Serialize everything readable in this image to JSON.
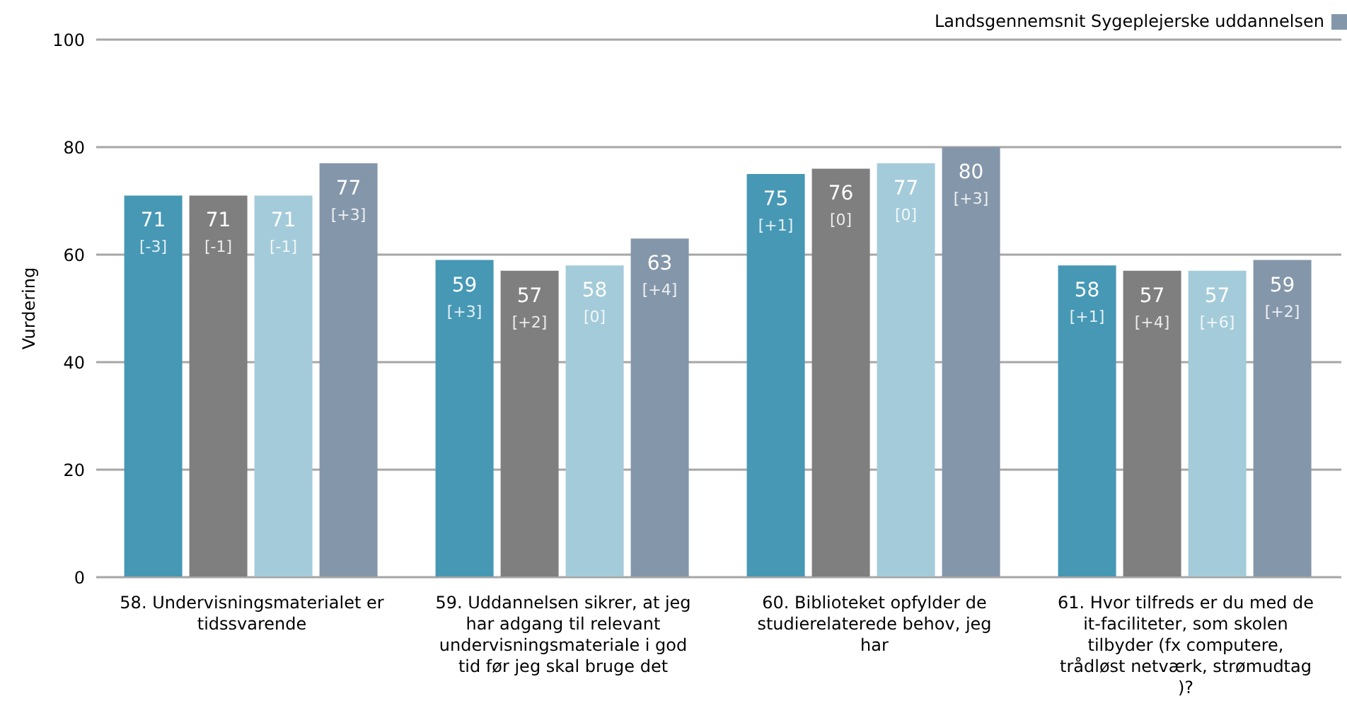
{
  "chart_data": {
    "type": "bar",
    "ylabel": "Vurdering",
    "categories": [
      "58. Undervisningsmaterialet er tidssvarende",
      "59. Uddannelsen sikrer, at jeg har adgang til relevant undervisningsmateriale i god tid før jeg skal bruge det",
      "60. Biblioteket opfylder de studierelaterede behov, jeg har",
      "61. Hvor tilfreds er du med de it-faciliteter, som skolen tilbyder (fx computere, trådløst netværk, strømudtag )?"
    ],
    "series": [
      {
        "color": "#4698b5",
        "values": [
          71,
          59,
          75,
          58
        ],
        "value_labels": [
          "71 [-3]",
          "59 [+3]",
          "75 [+1]",
          "58 [+1]"
        ]
      },
      {
        "color": "#7f7f7f",
        "values": [
          71,
          57,
          76,
          57
        ],
        "value_labels": [
          "71 [-1]",
          "57 [+2]",
          "76 [0]",
          "57 [+4]"
        ]
      },
      {
        "color": "#a4cbda",
        "values": [
          71,
          58,
          77,
          57
        ],
        "value_labels": [
          "71 [-1]",
          "58 [0]",
          "77 [0]",
          "57 [+6]"
        ]
      },
      {
        "name": "Landsgennemsnit Sygeplejerske uddannelsen",
        "color": "#8496aa",
        "values": [
          77,
          63,
          80,
          59
        ],
        "value_labels": [
          "77 [+3]",
          "63 [+4]",
          "80 [+3]",
          "59 [+2]"
        ]
      }
    ],
    "ylim": [
      0,
      100
    ],
    "yticks": [
      0,
      20,
      40,
      60,
      80,
      100
    ],
    "grid": "y",
    "legend": "top right"
  }
}
